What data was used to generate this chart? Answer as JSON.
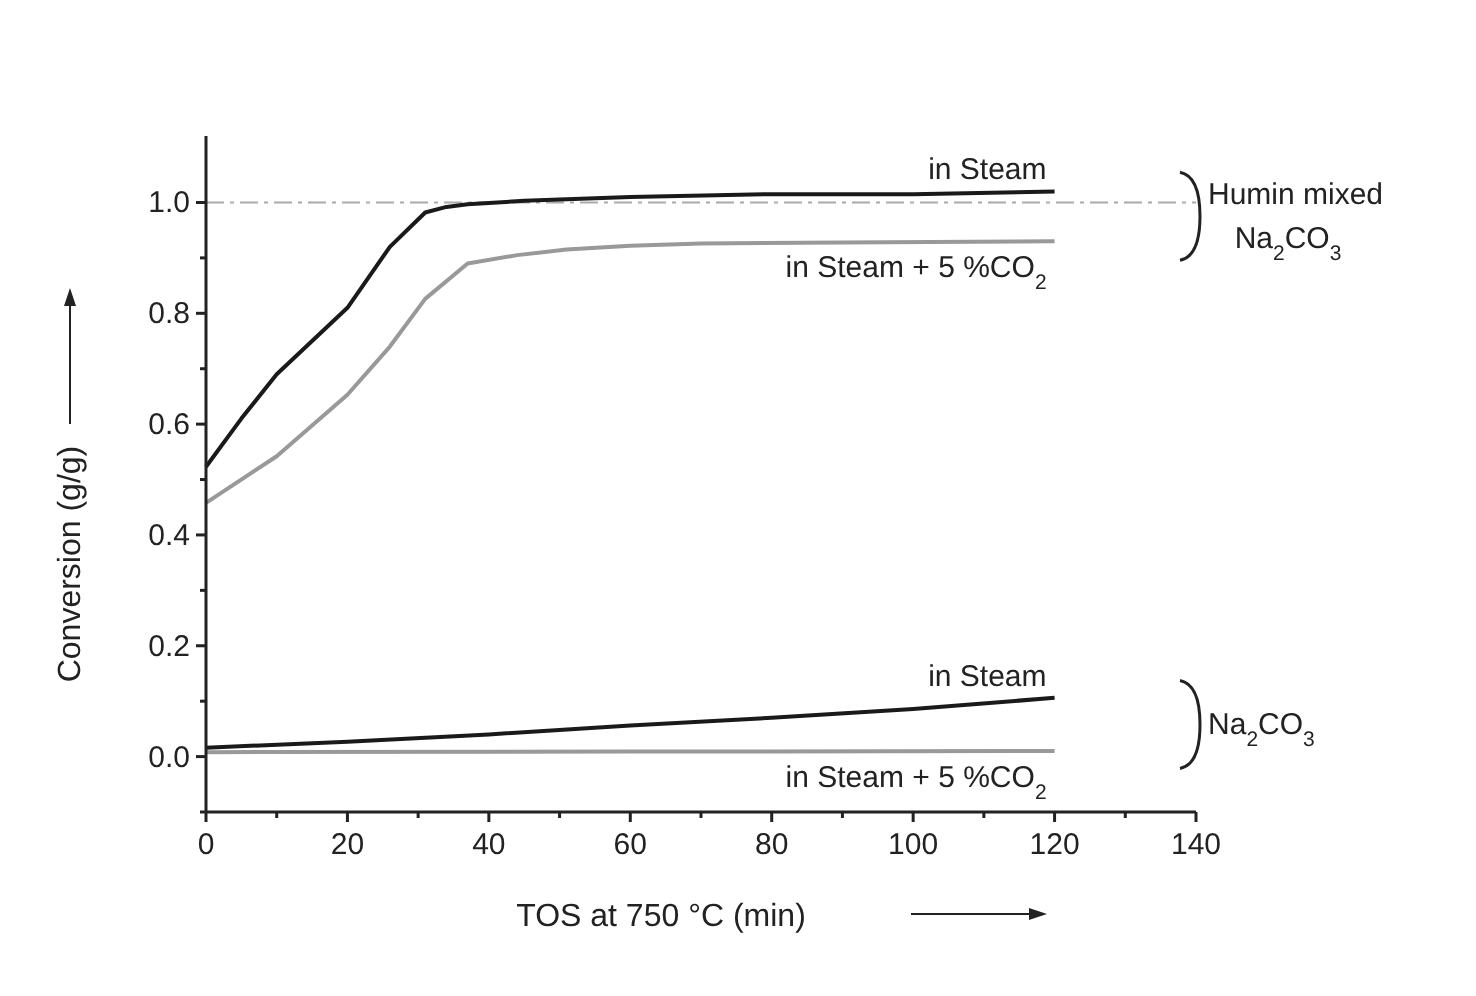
{
  "chart_data": {
    "type": "line",
    "xlabel": "TOS at 750 °C (min)",
    "ylabel": "Conversion (g/g)",
    "xlim": [
      0,
      140
    ],
    "ylim": [
      -0.1,
      1.12
    ],
    "xticks": [
      0,
      {
        "value": 10,
        "label": null
      },
      20,
      {
        "value": 30,
        "label": null
      },
      40,
      {
        "value": 50,
        "label": null
      },
      60,
      {
        "value": 70,
        "label": null
      },
      80,
      {
        "value": 90,
        "label": null
      },
      100,
      {
        "value": 110,
        "label": null
      },
      120,
      {
        "value": 130,
        "label": null
      },
      140
    ],
    "yticks": [
      {
        "value": -0.1,
        "label": null
      },
      {
        "value": 0,
        "label": "0.0"
      },
      {
        "value": 0.1,
        "label": null
      },
      0.2,
      {
        "value": 0.3,
        "label": null
      },
      0.4,
      {
        "value": 0.5,
        "label": null
      },
      0.6,
      {
        "value": 0.7,
        "label": null
      },
      0.8,
      {
        "value": 0.9,
        "label": null
      },
      {
        "value": 1,
        "label": "1.0"
      }
    ],
    "grid": false,
    "marker": "none",
    "line_style": "solid",
    "series": [
      {
        "name": "in Steam",
        "color": "#1a1a1a",
        "x": [
          0,
          5,
          10,
          15,
          20,
          26,
          31,
          34,
          37,
          45,
          60,
          80,
          100,
          120
        ],
        "values": [
          0.523,
          0.61,
          0.69,
          0.75,
          0.81,
          0.92,
          0.982,
          0.992,
          0.997,
          1.003,
          1.01,
          1.015,
          1.015,
          1.02
        ]
      },
      {
        "name": "in Steam + 5 %CO$_{2}$",
        "color": "#999999",
        "x": [
          0,
          10,
          20,
          26,
          31,
          37,
          44,
          51,
          60,
          70,
          90,
          120
        ],
        "values": [
          0.458,
          0.542,
          0.653,
          0.74,
          0.826,
          0.89,
          0.905,
          0.915,
          0.922,
          0.926,
          0.928,
          0.93
        ]
      },
      {
        "name": "in Steam",
        "color": "#1a1a1a",
        "x": [
          0,
          20,
          40,
          60,
          80,
          100,
          120
        ],
        "values": [
          0.016,
          0.027,
          0.04,
          0.056,
          0.07,
          0.086,
          0.106
        ]
      },
      {
        "name": "in Steam + 5 %CO$_{2}$",
        "color": "#999999",
        "x": [
          0,
          60,
          120
        ],
        "values": [
          0.008,
          0.009,
          0.01
        ]
      }
    ],
    "ref_lines": [
      {
        "axis": "y",
        "value": 1.0,
        "color": "#aaaaaa",
        "line_style": "dashed"
      }
    ],
    "annotations": [
      "Humin mixed Na$_{2}$CO$_{3}$",
      "Na$_{2}$CO$_{3}$"
    ]
  }
}
